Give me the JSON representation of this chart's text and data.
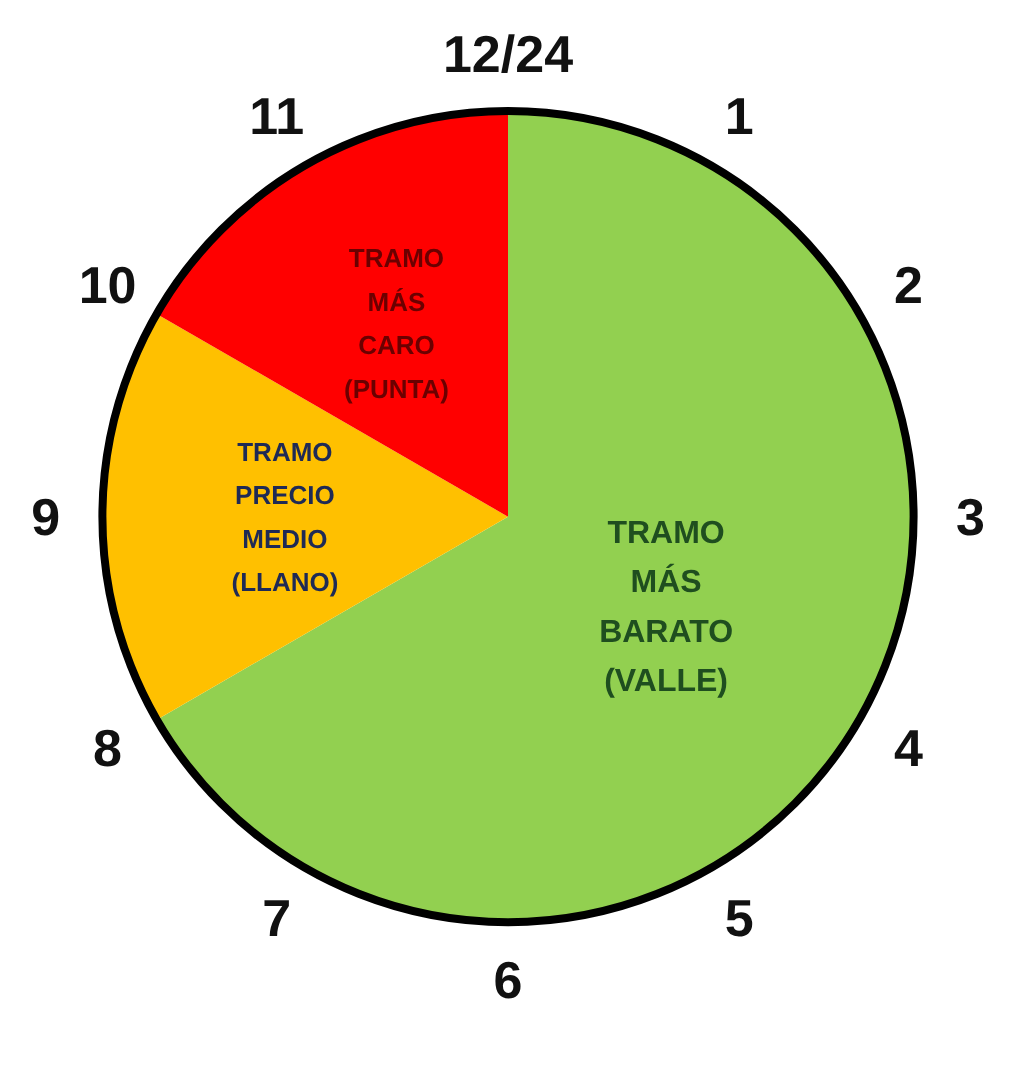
{
  "chart_data": {
    "type": "pie",
    "categories": [
      "TRAMO\nMÁS\nBARATO\n(VALLE)",
      "TRAMO\nPRECIO\nMEDIO\n(LLANO)",
      "TRAMO\nMÁS\nCARO\n(PUNTA)"
    ],
    "values": [
      66.66,
      16.67,
      16.67
    ],
    "colors": [
      "#92d050",
      "#ffc000",
      "#ff0000"
    ],
    "annotations": [
      "12/24",
      "1",
      "2",
      "3",
      "4",
      "5",
      "6",
      "7",
      "8",
      "9",
      "10",
      "11"
    ]
  }
}
